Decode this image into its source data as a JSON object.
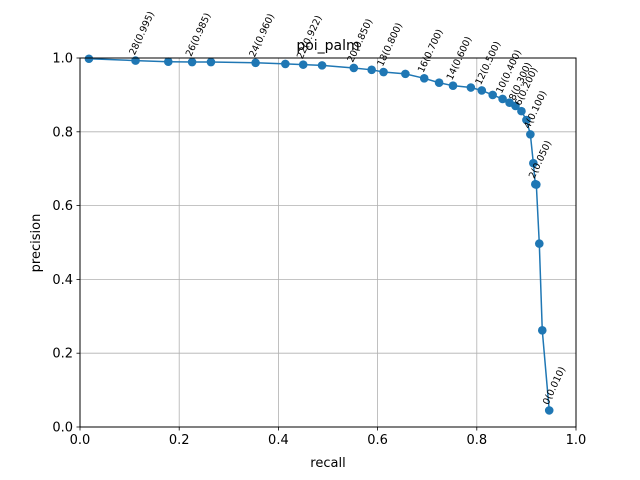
{
  "chart_data": {
    "type": "line",
    "title": "poi_palm",
    "xlabel": "recall",
    "ylabel": "precision",
    "xlim": [
      0.0,
      1.0
    ],
    "ylim": [
      0.0,
      1.0
    ],
    "xticks": [
      "0.0",
      "0.2",
      "0.4",
      "0.6",
      "0.8",
      "1.0"
    ],
    "yticks": [
      "0.0",
      "0.2",
      "0.4",
      "0.6",
      "0.8",
      "1.0"
    ],
    "grid": true,
    "line_color": "#1f77b4",
    "x": [
      0.018,
      0.112,
      0.178,
      0.226,
      0.264,
      0.354,
      0.414,
      0.45,
      0.488,
      0.552,
      0.588,
      0.612,
      0.656,
      0.694,
      0.724,
      0.752,
      0.788,
      0.81,
      0.832,
      0.852,
      0.866,
      0.878,
      0.89,
      0.9,
      0.908,
      0.914,
      0.918,
      0.92,
      0.926,
      0.932,
      0.946
    ],
    "y": [
      0.998,
      0.993,
      0.99,
      0.989,
      0.989,
      0.987,
      0.984,
      0.982,
      0.98,
      0.973,
      0.968,
      0.962,
      0.957,
      0.945,
      0.933,
      0.925,
      0.92,
      0.912,
      0.9,
      0.889,
      0.879,
      0.87,
      0.856,
      0.832,
      0.793,
      0.715,
      0.658,
      0.657,
      0.497,
      0.262,
      0.045
    ],
    "annotations": [
      {
        "index": 1,
        "text": "28(0.995)"
      },
      {
        "index": 3,
        "text": "26(0.985)"
      },
      {
        "index": 5,
        "text": "24(0.960)"
      },
      {
        "index": 7,
        "text": "22(0.922)"
      },
      {
        "index": 9,
        "text": "20(0.850)"
      },
      {
        "index": 11,
        "text": "18(0.800)"
      },
      {
        "index": 13,
        "text": "16(0.700)"
      },
      {
        "index": 15,
        "text": "14(0.600)"
      },
      {
        "index": 17,
        "text": "12(0.500)"
      },
      {
        "index": 19,
        "text": "10(0.400)"
      },
      {
        "index": 21,
        "text": "8(0.300)"
      },
      {
        "index": 22,
        "text": "6(0.200)"
      },
      {
        "index": 24,
        "text": "4(0.100)"
      },
      {
        "index": 26,
        "text": "2(0.050)"
      },
      {
        "index": 30,
        "text": "0(0.010)"
      }
    ]
  }
}
